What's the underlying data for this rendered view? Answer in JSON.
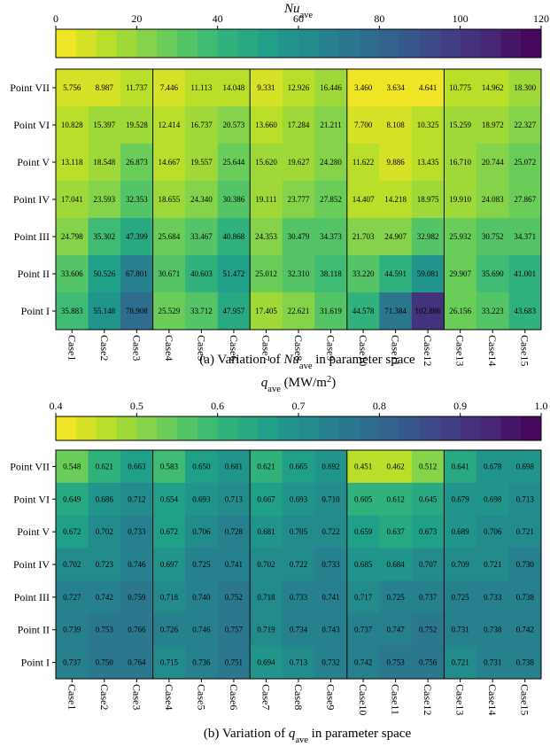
{
  "chart_data": [
    {
      "type": "heatmap",
      "colorbar_label": [
        "Nu",
        "ave"
      ],
      "caption": [
        "(a) Variation of ",
        "Nu",
        "ave",
        " in parameter space"
      ],
      "colormap": "viridis_r",
      "levels": 24,
      "clim": [
        0,
        120
      ],
      "cticks": [
        0,
        20,
        40,
        60,
        80,
        100,
        120
      ],
      "rows": [
        "Point VII",
        "Point VI",
        "Point V",
        "Point IV",
        "Point III",
        "Point II",
        "Point I"
      ],
      "columns": [
        "Case1",
        "Case2",
        "Case3",
        "Case4",
        "Case5",
        "Case6",
        "Case7",
        "Case8",
        "Case9",
        "Case10",
        "Case11",
        "Case12",
        "Case13",
        "Case14",
        "Case15"
      ],
      "values": [
        [
          5.756,
          8.987,
          11.737,
          7.446,
          11.113,
          14.048,
          9.331,
          12.926,
          16.446,
          3.46,
          3.634,
          4.641,
          10.775,
          14.962,
          18.3
        ],
        [
          10.828,
          15.397,
          19.528,
          12.414,
          16.737,
          20.573,
          13.66,
          17.284,
          21.211,
          7.7,
          8.108,
          10.325,
          15.259,
          18.972,
          22.327
        ],
        [
          13.118,
          18.548,
          26.873,
          14.667,
          19.557,
          25.644,
          15.62,
          19.627,
          24.28,
          11.622,
          9.886,
          13.435,
          16.71,
          20.744,
          25.072
        ],
        [
          17.041,
          23.593,
          32.353,
          18.655,
          24.34,
          30.386,
          19.111,
          23.777,
          27.852,
          14.407,
          14.218,
          18.975,
          19.91,
          24.083,
          27.867
        ],
        [
          24.798,
          35.302,
          47.399,
          25.684,
          33.467,
          40.868,
          24.353,
          30.479,
          34.373,
          21.703,
          24.907,
          32.982,
          25.932,
          30.752,
          34.371
        ],
        [
          33.606,
          50.526,
          67.801,
          30.671,
          40.603,
          51.472,
          25.012,
          32.31,
          38.118,
          33.22,
          44.591,
          59.081,
          29.907,
          35.69,
          41.001
        ],
        [
          35.883,
          55.148,
          78.908,
          25.529,
          33.712,
          47.957,
          17.405,
          22.621,
          31.619,
          44.578,
          71.384,
          102.886,
          26.156,
          33.223,
          43.683
        ]
      ],
      "value_labels": [
        [
          "5.756",
          "8.987",
          "11.737",
          "7.446",
          "11.113",
          "14.048",
          "9.331",
          "12.926",
          "16.446",
          "3.460",
          "3.634",
          "4.641",
          "10.775",
          "14.962",
          "18.300"
        ],
        [
          "10.828",
          "15.397",
          "19.528",
          "12.414",
          "16.737",
          "20.573",
          "13.660",
          "17.284",
          "21.211",
          "7.700",
          "8.108",
          "10.325",
          "15.259",
          "18.972",
          "22.327"
        ],
        [
          "13.118",
          "18.548",
          "26.873",
          "14.667",
          "19.557",
          "25.644",
          "15.620",
          "19.627",
          "24.280",
          "11.622",
          "9.886",
          "13.435",
          "16.710",
          "20.744",
          "25.072"
        ],
        [
          "17.041",
          "23.593",
          "32.353",
          "18.655",
          "24.340",
          "30.386",
          "19.111",
          "23.777",
          "27.852",
          "14.407",
          "14.218",
          "18.975",
          "19.910",
          "24.083",
          "27.867"
        ],
        [
          "24.798",
          "35.302",
          "47.399",
          "25.684",
          "33.467",
          "40.868",
          "24.353",
          "30.479",
          "34.373",
          "21.703",
          "24.907",
          "32.982",
          "25.932",
          "30.752",
          "34.371"
        ],
        [
          "33.606",
          "50.526",
          "67.801",
          "30.671",
          "40.603",
          "51.472",
          "25.012",
          "32.310",
          "38.118",
          "33.220",
          "44.591",
          "59.081",
          "29.907",
          "35.690",
          "41.001"
        ],
        [
          "35.883",
          "55.148",
          "78.908",
          "25.529",
          "33.712",
          "47.957",
          "17.405",
          "22.621",
          "31.619",
          "44.578",
          "71.384",
          "102.886",
          "26.156",
          "33.223",
          "43.683"
        ]
      ]
    },
    {
      "type": "heatmap",
      "colorbar_label": [
        "q",
        "ave",
        " (MW/m",
        "2",
        ")"
      ],
      "caption": [
        "(b) Variation of ",
        "q",
        "ave",
        " in parameter space"
      ],
      "colormap": "viridis_r",
      "levels": 24,
      "clim": [
        0.4,
        1
      ],
      "cticks": [
        0.4,
        0.5,
        0.6,
        0.7,
        0.8,
        0.9,
        {
          "value": 1,
          "label": "1.0"
        }
      ],
      "rows": [
        "Point VII",
        "Point VI",
        "Point V",
        "Point IV",
        "Point III",
        "Point II",
        "Point I"
      ],
      "columns": [
        "Case1",
        "Case2",
        "Case3",
        "Case4",
        "Case5",
        "Case6",
        "Case7",
        "Case8",
        "Case9",
        "Case10",
        "Case11",
        "Case12",
        "Case13",
        "Case14",
        "Case15"
      ],
      "values": [
        [
          0.548,
          0.621,
          0.663,
          0.583,
          0.65,
          0.681,
          0.621,
          0.665,
          0.692,
          0.451,
          0.462,
          0.512,
          0.641,
          0.678,
          0.698
        ],
        [
          0.649,
          0.686,
          0.712,
          0.654,
          0.693,
          0.713,
          0.667,
          0.693,
          0.71,
          0.605,
          0.612,
          0.645,
          0.679,
          0.698,
          0.713
        ],
        [
          0.672,
          0.702,
          0.733,
          0.672,
          0.706,
          0.728,
          0.681,
          0.705,
          0.722,
          0.659,
          0.637,
          0.673,
          0.689,
          0.706,
          0.721
        ],
        [
          0.702,
          0.723,
          0.746,
          0.697,
          0.725,
          0.741,
          0.702,
          0.722,
          0.733,
          0.685,
          0.684,
          0.707,
          0.709,
          0.721,
          0.73
        ],
        [
          0.727,
          0.742,
          0.759,
          0.718,
          0.74,
          0.752,
          0.718,
          0.733,
          0.741,
          0.717,
          0.725,
          0.737,
          0.725,
          0.733,
          0.738
        ],
        [
          0.739,
          0.753,
          0.766,
          0.726,
          0.746,
          0.757,
          0.719,
          0.734,
          0.743,
          0.737,
          0.747,
          0.752,
          0.731,
          0.738,
          0.742
        ],
        [
          0.737,
          0.75,
          0.764,
          0.715,
          0.736,
          0.751,
          0.694,
          0.713,
          0.732,
          0.742,
          0.753,
          0.756,
          0.721,
          0.731,
          0.738
        ]
      ],
      "value_labels": [
        [
          "0.548",
          "0.621",
          "0.663",
          "0.583",
          "0.650",
          "0.681",
          "0.621",
          "0.665",
          "0.692",
          "0.451",
          "0.462",
          "0.512",
          "0.641",
          "0.678",
          "0.698"
        ],
        [
          "0.649",
          "0.686",
          "0.712",
          "0.654",
          "0.693",
          "0.713",
          "0.667",
          "0.693",
          "0.710",
          "0.605",
          "0.612",
          "0.645",
          "0.679",
          "0.698",
          "0.713"
        ],
        [
          "0.672",
          "0.702",
          "0.733",
          "0.672",
          "0.706",
          "0.728",
          "0.681",
          "0.705",
          "0.722",
          "0.659",
          "0.637",
          "0.673",
          "0.689",
          "0.706",
          "0.721"
        ],
        [
          "0.702",
          "0.723",
          "0.746",
          "0.697",
          "0.725",
          "0.741",
          "0.702",
          "0.722",
          "0.733",
          "0.685",
          "0.684",
          "0.707",
          "0.709",
          "0.721",
          "0.730"
        ],
        [
          "0.727",
          "0.742",
          "0.759",
          "0.718",
          "0.740",
          "0.752",
          "0.718",
          "0.733",
          "0.741",
          "0.717",
          "0.725",
          "0.737",
          "0.725",
          "0.733",
          "0.738"
        ],
        [
          "0.739",
          "0.753",
          "0.766",
          "0.726",
          "0.746",
          "0.757",
          "0.719",
          "0.734",
          "0.743",
          "0.737",
          "0.747",
          "0.752",
          "0.731",
          "0.738",
          "0.742"
        ],
        [
          "0.737",
          "0.750",
          "0.764",
          "0.715",
          "0.736",
          "0.751",
          "0.694",
          "0.713",
          "0.732",
          "0.742",
          "0.753",
          "0.756",
          "0.721",
          "0.731",
          "0.738"
        ]
      ]
    }
  ]
}
